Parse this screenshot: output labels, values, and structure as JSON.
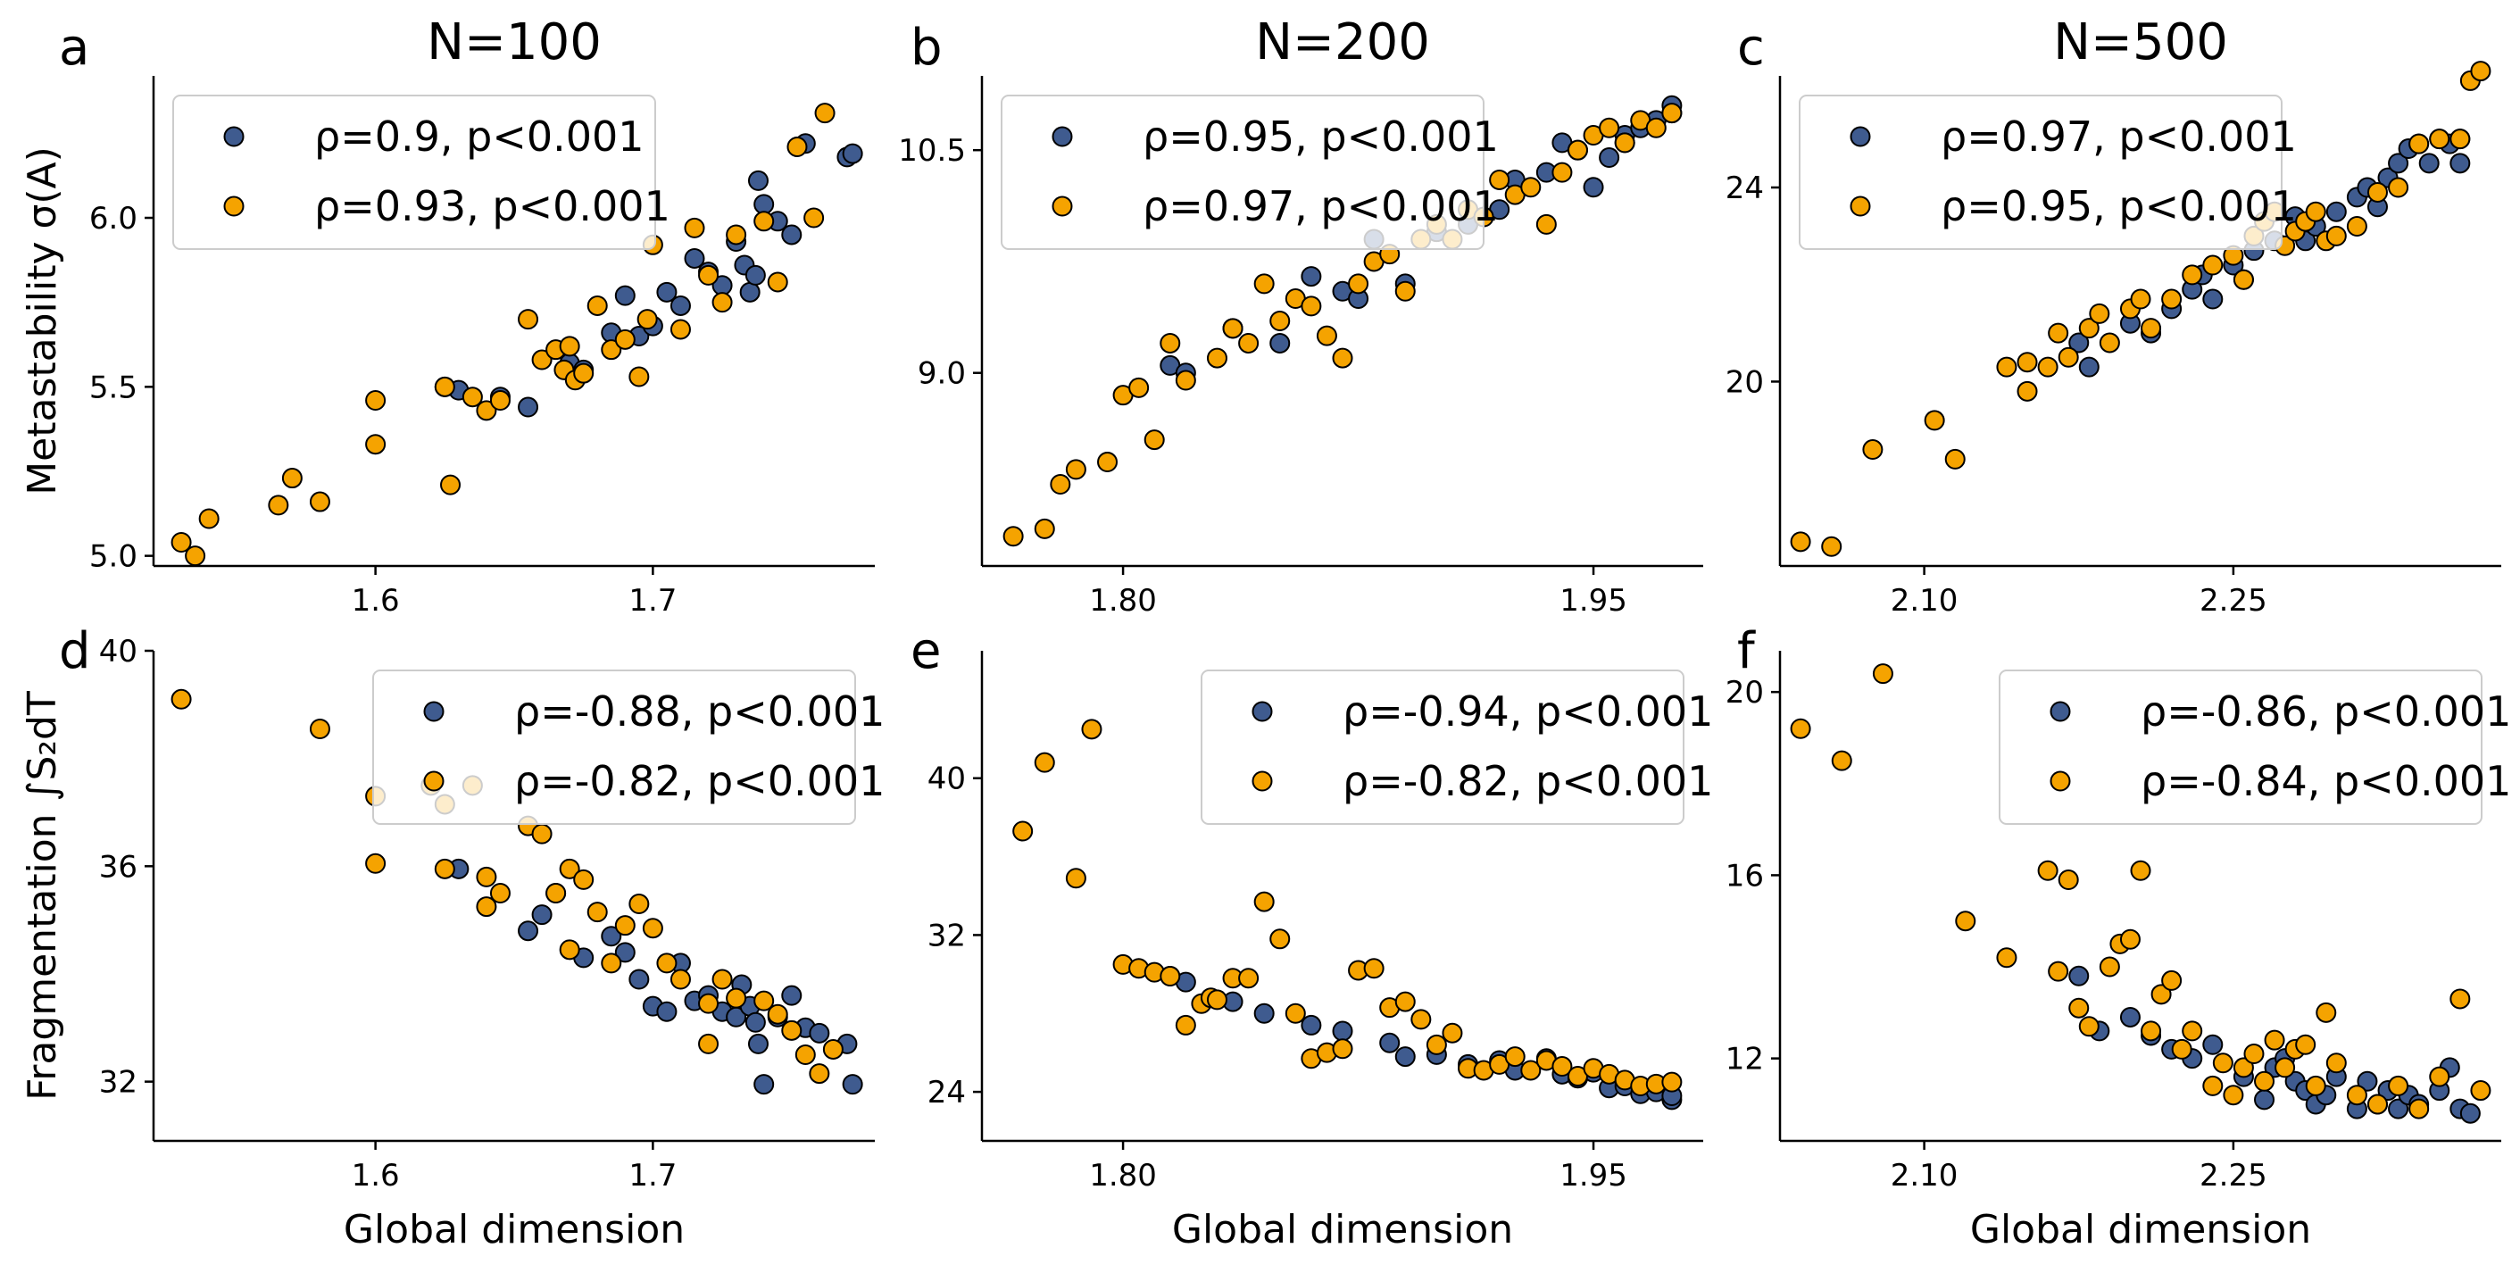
{
  "figure": {
    "colors": {
      "blue": "#3f5b8f",
      "orange": "#f5a300",
      "edge": "#000000",
      "axis": "#000000",
      "legend_border": "#cccccc"
    }
  },
  "chart_data": [
    {
      "type": "scatter",
      "panel": "a",
      "title": "N=100",
      "xlabel": "",
      "ylabel": "Metastability σ(A)",
      "xlim": [
        1.52,
        1.78
      ],
      "ylim": [
        4.97,
        6.42
      ],
      "xticks": [
        1.6,
        1.7
      ],
      "xtick_labels": [
        "1.6",
        "1.7"
      ],
      "yticks": [
        5.0,
        5.5,
        6.0
      ],
      "ytick_labels": [
        "5.0",
        "5.5",
        "6.0"
      ],
      "legend_position": "upper-left",
      "series": [
        {
          "name": "ρ=0.9, p<0.001",
          "color": "blue",
          "x": [
            1.625,
            1.63,
            1.645,
            1.655,
            1.67,
            1.675,
            1.685,
            1.69,
            1.695,
            1.7,
            1.705,
            1.71,
            1.715,
            1.72,
            1.725,
            1.73,
            1.733,
            1.735,
            1.737,
            1.738,
            1.74,
            1.745,
            1.75,
            1.755,
            1.77,
            1.772
          ],
          "y": [
            5.5,
            5.49,
            5.47,
            5.44,
            5.57,
            5.55,
            5.66,
            5.77,
            5.65,
            5.68,
            5.78,
            5.74,
            5.88,
            5.84,
            5.8,
            5.93,
            5.86,
            5.78,
            5.83,
            6.11,
            6.04,
            5.99,
            5.95,
            6.22,
            6.18,
            6.19
          ]
        },
        {
          "name": "ρ=0.93, p<0.001",
          "color": "orange",
          "x": [
            1.53,
            1.535,
            1.54,
            1.565,
            1.57,
            1.58,
            1.6,
            1.6,
            1.625,
            1.627,
            1.635,
            1.64,
            1.645,
            1.655,
            1.66,
            1.665,
            1.668,
            1.67,
            1.672,
            1.675,
            1.68,
            1.685,
            1.69,
            1.695,
            1.698,
            1.7,
            1.71,
            1.715,
            1.72,
            1.725,
            1.73,
            1.74,
            1.745,
            1.752,
            1.758,
            1.762
          ],
          "y": [
            5.04,
            5.0,
            5.11,
            5.15,
            5.23,
            5.16,
            5.46,
            5.33,
            5.5,
            5.21,
            5.47,
            5.43,
            5.46,
            5.7,
            5.58,
            5.61,
            5.55,
            5.62,
            5.52,
            5.54,
            5.74,
            5.61,
            5.64,
            5.53,
            5.7,
            5.92,
            5.67,
            5.97,
            5.83,
            5.75,
            5.95,
            5.99,
            5.81,
            6.21,
            6.0,
            6.31
          ]
        }
      ]
    },
    {
      "type": "scatter",
      "panel": "b",
      "title": "N=200",
      "xlabel": "",
      "ylabel": "",
      "xlim": [
        1.755,
        1.985
      ],
      "ylim": [
        7.7,
        11.0
      ],
      "xticks": [
        1.8,
        1.95
      ],
      "xtick_labels": [
        "1.80",
        "1.95"
      ],
      "yticks": [
        9.0,
        10.5
      ],
      "ytick_labels": [
        "9.0",
        "10.5"
      ],
      "legend_position": "upper-left",
      "series": [
        {
          "name": "ρ=0.95, p<0.001",
          "color": "blue",
          "x": [
            1.815,
            1.82,
            1.835,
            1.85,
            1.86,
            1.87,
            1.875,
            1.88,
            1.89,
            1.9,
            1.91,
            1.92,
            1.925,
            1.935,
            1.94,
            1.945,
            1.95,
            1.955,
            1.96,
            1.96,
            1.965,
            1.97,
            1.975,
            1.975
          ],
          "y": [
            9.05,
            9.0,
            9.3,
            9.2,
            9.65,
            9.55,
            9.5,
            9.9,
            9.6,
            9.95,
            10.0,
            10.1,
            10.3,
            10.35,
            10.55,
            10.5,
            10.25,
            10.45,
            10.6,
            10.55,
            10.65,
            10.7,
            10.75,
            10.8
          ]
        },
        {
          "name": "ρ=0.97, p<0.001",
          "color": "orange",
          "x": [
            1.765,
            1.775,
            1.785,
            1.78,
            1.795,
            1.8,
            1.805,
            1.81,
            1.815,
            1.82,
            1.83,
            1.835,
            1.84,
            1.845,
            1.85,
            1.855,
            1.86,
            1.865,
            1.87,
            1.875,
            1.88,
            1.885,
            1.89,
            1.895,
            1.9,
            1.905,
            1.91,
            1.915,
            1.92,
            1.925,
            1.93,
            1.935,
            1.94,
            1.945,
            1.95,
            1.955,
            1.96,
            1.965,
            1.97,
            1.975
          ],
          "y": [
            7.9,
            7.95,
            8.35,
            8.25,
            8.4,
            8.85,
            8.9,
            8.55,
            9.2,
            8.95,
            9.1,
            9.3,
            9.2,
            9.6,
            9.35,
            9.5,
            9.45,
            9.25,
            9.1,
            9.6,
            9.75,
            9.8,
            9.55,
            9.9,
            10.0,
            9.9,
            10.1,
            10.05,
            10.3,
            10.2,
            10.25,
            10.0,
            10.35,
            10.5,
            10.6,
            10.65,
            10.55,
            10.7,
            10.65,
            10.75
          ]
        }
      ]
    },
    {
      "type": "scatter",
      "panel": "c",
      "title": "N=500",
      "xlabel": "",
      "ylabel": "",
      "xlim": [
        2.03,
        2.38
      ],
      "ylim": [
        16.2,
        26.3
      ],
      "xticks": [
        2.1,
        2.25
      ],
      "xtick_labels": [
        "2.10",
        "2.25"
      ],
      "yticks": [
        20,
        24
      ],
      "ytick_labels": [
        "20",
        "24"
      ],
      "legend_position": "upper-left",
      "series": [
        {
          "name": "ρ=0.97, p<0.001",
          "color": "blue",
          "x": [
            2.175,
            2.18,
            2.2,
            2.21,
            2.22,
            2.23,
            2.235,
            2.24,
            2.25,
            2.255,
            2.26,
            2.27,
            2.28,
            2.285,
            2.29,
            2.3,
            2.31,
            2.315,
            2.32,
            2.325,
            2.33,
            2.335,
            2.34,
            2.345,
            2.35,
            2.355,
            2.36,
            2.36
          ],
          "y": [
            20.8,
            20.3,
            21.2,
            21.0,
            21.5,
            21.9,
            22.2,
            21.7,
            22.4,
            22.1,
            22.7,
            22.9,
            23.4,
            22.9,
            23.2,
            23.5,
            23.8,
            24.0,
            23.6,
            24.2,
            24.5,
            24.8,
            24.9,
            24.5,
            25.0,
            24.9,
            25.0,
            24.5
          ]
        },
        {
          "name": "ρ=0.95, p<0.001",
          "color": "orange",
          "x": [
            2.04,
            2.055,
            2.075,
            2.105,
            2.115,
            2.14,
            2.15,
            2.15,
            2.16,
            2.165,
            2.17,
            2.18,
            2.185,
            2.19,
            2.2,
            2.205,
            2.21,
            2.22,
            2.23,
            2.24,
            2.25,
            2.255,
            2.26,
            2.265,
            2.27,
            2.275,
            2.28,
            2.285,
            2.29,
            2.295,
            2.3,
            2.31,
            2.32,
            2.33,
            2.34,
            2.35,
            2.36,
            2.365,
            2.37
          ],
          "y": [
            16.7,
            16.6,
            18.6,
            19.2,
            18.4,
            20.3,
            20.4,
            19.8,
            20.3,
            21.0,
            20.5,
            21.1,
            21.4,
            20.8,
            21.5,
            21.7,
            21.1,
            21.7,
            22.2,
            22.4,
            22.6,
            22.1,
            23.0,
            23.3,
            23.5,
            22.8,
            23.1,
            23.3,
            23.5,
            22.9,
            23.0,
            23.2,
            23.9,
            24.0,
            24.9,
            25.0,
            25.0,
            26.2,
            26.4
          ]
        }
      ]
    },
    {
      "type": "scatter",
      "panel": "d",
      "title": "",
      "xlabel": "Global dimension",
      "ylabel": "Fragmentation ∫S₂dT",
      "xlim": [
        1.52,
        1.78
      ],
      "ylim": [
        30.9,
        40.0
      ],
      "xticks": [
        1.6,
        1.7
      ],
      "xtick_labels": [
        "1.6",
        "1.7"
      ],
      "yticks": [
        32,
        36,
        40
      ],
      "ytick_labels": [
        "32",
        "36",
        "40"
      ],
      "legend_position": "upper-right",
      "series": [
        {
          "name": "ρ=-0.88, p<0.001",
          "color": "blue",
          "x": [
            1.63,
            1.655,
            1.66,
            1.665,
            1.675,
            1.685,
            1.69,
            1.695,
            1.7,
            1.705,
            1.71,
            1.715,
            1.72,
            1.725,
            1.73,
            1.732,
            1.735,
            1.737,
            1.738,
            1.74,
            1.745,
            1.75,
            1.755,
            1.76,
            1.77,
            1.772
          ],
          "y": [
            35.95,
            34.8,
            35.1,
            35.5,
            34.3,
            34.7,
            34.4,
            33.9,
            33.4,
            33.3,
            34.2,
            33.5,
            33.6,
            33.3,
            33.2,
            33.8,
            33.4,
            33.1,
            32.7,
            31.95,
            33.2,
            33.6,
            33.0,
            32.9,
            32.7,
            31.95
          ]
        },
        {
          "name": "ρ=-0.82, p<0.001",
          "color": "orange",
          "x": [
            1.53,
            1.58,
            1.6,
            1.6,
            1.62,
            1.625,
            1.625,
            1.635,
            1.64,
            1.64,
            1.645,
            1.655,
            1.66,
            1.665,
            1.67,
            1.67,
            1.675,
            1.68,
            1.685,
            1.69,
            1.695,
            1.7,
            1.705,
            1.71,
            1.72,
            1.72,
            1.725,
            1.73,
            1.74,
            1.745,
            1.75,
            1.755,
            1.76,
            1.765
          ],
          "y": [
            39.1,
            38.55,
            37.3,
            36.05,
            37.5,
            37.15,
            35.95,
            37.5,
            35.8,
            35.25,
            35.5,
            36.75,
            36.6,
            35.5,
            35.95,
            34.45,
            35.75,
            35.15,
            34.2,
            34.9,
            35.3,
            34.85,
            34.2,
            33.9,
            33.45,
            32.7,
            33.9,
            33.55,
            33.5,
            33.25,
            32.95,
            32.5,
            32.15,
            32.6
          ]
        }
      ]
    },
    {
      "type": "scatter",
      "panel": "e",
      "title": "",
      "xlabel": "Global dimension",
      "ylabel": "",
      "xlim": [
        1.755,
        1.985
      ],
      "ylim": [
        21.5,
        46.5
      ],
      "xticks": [
        1.8,
        1.95
      ],
      "xtick_labels": [
        "1.80",
        "1.95"
      ],
      "yticks": [
        24,
        32,
        40
      ],
      "ytick_labels": [
        "24",
        "32",
        "40"
      ],
      "legend_position": "upper-right",
      "series": [
        {
          "name": "ρ=-0.94, p<0.001",
          "color": "blue",
          "x": [
            1.815,
            1.82,
            1.835,
            1.845,
            1.86,
            1.87,
            1.885,
            1.89,
            1.9,
            1.91,
            1.92,
            1.925,
            1.935,
            1.94,
            1.945,
            1.95,
            1.955,
            1.96,
            1.96,
            1.965,
            1.97,
            1.975,
            1.975
          ],
          "y": [
            29.9,
            29.6,
            28.6,
            28.0,
            27.4,
            27.1,
            26.5,
            25.8,
            25.9,
            25.4,
            25.6,
            25.1,
            25.7,
            24.9,
            24.7,
            25.0,
            24.2,
            24.5,
            24.3,
            23.9,
            24.0,
            23.6,
            23.8
          ]
        },
        {
          "name": "ρ=-0.82, p<0.001",
          "color": "orange",
          "x": [
            1.768,
            1.775,
            1.785,
            1.79,
            1.8,
            1.805,
            1.81,
            1.815,
            1.82,
            1.825,
            1.828,
            1.83,
            1.835,
            1.84,
            1.845,
            1.85,
            1.855,
            1.86,
            1.865,
            1.87,
            1.875,
            1.88,
            1.885,
            1.89,
            1.895,
            1.9,
            1.905,
            1.91,
            1.915,
            1.92,
            1.925,
            1.93,
            1.935,
            1.94,
            1.945,
            1.95,
            1.955,
            1.96,
            1.965,
            1.97,
            1.975
          ],
          "y": [
            37.3,
            40.8,
            34.9,
            42.5,
            30.5,
            30.3,
            30.1,
            29.9,
            27.4,
            28.5,
            28.8,
            28.7,
            29.8,
            29.8,
            33.7,
            31.8,
            28.0,
            25.7,
            26.0,
            26.2,
            30.2,
            30.3,
            28.3,
            28.6,
            27.7,
            26.4,
            27.0,
            25.2,
            25.1,
            25.4,
            25.8,
            25.1,
            25.6,
            25.3,
            24.8,
            25.2,
            24.9,
            24.6,
            24.3,
            24.4,
            24.5
          ]
        }
      ]
    },
    {
      "type": "scatter",
      "panel": "f",
      "title": "",
      "xlabel": "Global dimension",
      "ylabel": "",
      "xlim": [
        2.03,
        2.38
      ],
      "ylim": [
        10.2,
        20.9
      ],
      "xticks": [
        2.1,
        2.25
      ],
      "xtick_labels": [
        "2.10",
        "2.25"
      ],
      "yticks": [
        12,
        16,
        20
      ],
      "ytick_labels": [
        "12",
        "16",
        "20"
      ],
      "legend_position": "upper-right",
      "series": [
        {
          "name": "ρ=-0.86, p<0.001",
          "color": "blue",
          "x": [
            2.175,
            2.185,
            2.2,
            2.21,
            2.22,
            2.23,
            2.24,
            2.255,
            2.265,
            2.27,
            2.275,
            2.28,
            2.285,
            2.29,
            2.295,
            2.3,
            2.31,
            2.315,
            2.32,
            2.325,
            2.33,
            2.335,
            2.34,
            2.35,
            2.355,
            2.36,
            2.365
          ],
          "y": [
            13.8,
            12.6,
            12.9,
            12.5,
            12.2,
            12.0,
            12.3,
            11.6,
            11.1,
            11.8,
            12.0,
            11.5,
            11.3,
            11.0,
            11.2,
            11.6,
            10.9,
            11.5,
            11.0,
            11.3,
            10.9,
            11.2,
            11.0,
            11.3,
            11.8,
            10.9,
            10.8
          ]
        },
        {
          "name": "ρ=-0.84, p<0.001",
          "color": "orange",
          "x": [
            2.04,
            2.06,
            2.08,
            2.12,
            2.14,
            2.16,
            2.165,
            2.17,
            2.175,
            2.18,
            2.19,
            2.195,
            2.2,
            2.205,
            2.21,
            2.215,
            2.22,
            2.225,
            2.23,
            2.24,
            2.245,
            2.25,
            2.255,
            2.26,
            2.265,
            2.27,
            2.275,
            2.28,
            2.285,
            2.29,
            2.295,
            2.3,
            2.31,
            2.32,
            2.33,
            2.34,
            2.35,
            2.36,
            2.37
          ],
          "y": [
            19.2,
            18.5,
            20.4,
            15.0,
            14.2,
            16.1,
            13.9,
            15.9,
            13.1,
            12.7,
            14.0,
            14.5,
            14.6,
            16.1,
            12.6,
            13.4,
            13.7,
            12.2,
            12.6,
            11.4,
            11.9,
            11.2,
            11.8,
            12.1,
            11.5,
            12.4,
            11.8,
            12.2,
            12.3,
            11.4,
            13.0,
            11.9,
            11.2,
            11.0,
            11.4,
            10.9,
            11.6,
            13.3,
            11.3
          ]
        }
      ]
    }
  ]
}
